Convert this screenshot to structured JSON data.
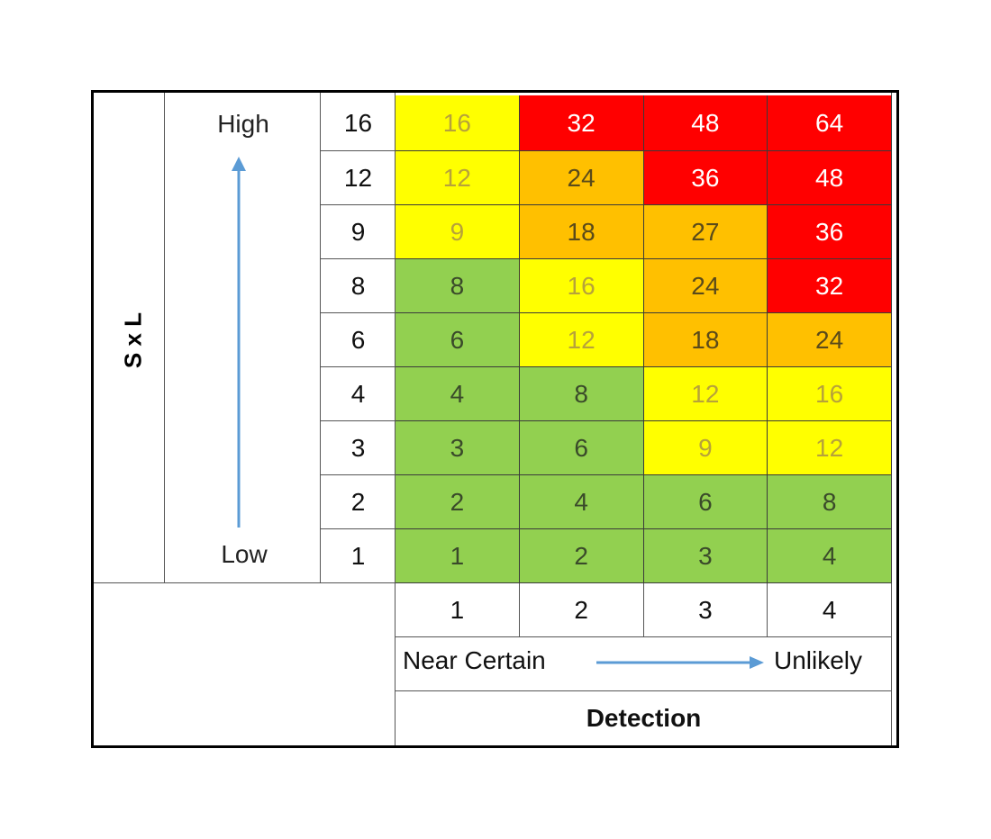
{
  "y_axis": {
    "title": "S x L",
    "high_label": "High",
    "low_label": "Low"
  },
  "row_labels": [
    "16",
    "12",
    "9",
    "8",
    "6",
    "4",
    "3",
    "2",
    "1"
  ],
  "col_labels": [
    "1",
    "2",
    "3",
    "4"
  ],
  "x_axis": {
    "left_label": "Near Certain",
    "right_label": "Unlikely",
    "title": "Detection"
  },
  "colors": {
    "green": "#92d050",
    "yellow": "#ffff00",
    "orange": "#ffc000",
    "red": "#ff0000",
    "arrow": "#5b9bd5"
  },
  "grid": [
    [
      {
        "v": "16",
        "c": "yellow"
      },
      {
        "v": "32",
        "c": "red"
      },
      {
        "v": "48",
        "c": "red"
      },
      {
        "v": "64",
        "c": "red"
      }
    ],
    [
      {
        "v": "12",
        "c": "yellow"
      },
      {
        "v": "24",
        "c": "orange"
      },
      {
        "v": "36",
        "c": "red"
      },
      {
        "v": "48",
        "c": "red"
      }
    ],
    [
      {
        "v": "9",
        "c": "yellow"
      },
      {
        "v": "18",
        "c": "orange"
      },
      {
        "v": "27",
        "c": "orange"
      },
      {
        "v": "36",
        "c": "red"
      }
    ],
    [
      {
        "v": "8",
        "c": "green"
      },
      {
        "v": "16",
        "c": "yellow"
      },
      {
        "v": "24",
        "c": "orange"
      },
      {
        "v": "32",
        "c": "red"
      }
    ],
    [
      {
        "v": "6",
        "c": "green"
      },
      {
        "v": "12",
        "c": "yellow"
      },
      {
        "v": "18",
        "c": "orange"
      },
      {
        "v": "24",
        "c": "orange"
      }
    ],
    [
      {
        "v": "4",
        "c": "green"
      },
      {
        "v": "8",
        "c": "green"
      },
      {
        "v": "12",
        "c": "yellow"
      },
      {
        "v": "16",
        "c": "yellow"
      }
    ],
    [
      {
        "v": "3",
        "c": "green"
      },
      {
        "v": "6",
        "c": "green"
      },
      {
        "v": "9",
        "c": "yellow"
      },
      {
        "v": "12",
        "c": "yellow"
      }
    ],
    [
      {
        "v": "2",
        "c": "green"
      },
      {
        "v": "4",
        "c": "green"
      },
      {
        "v": "6",
        "c": "green"
      },
      {
        "v": "8",
        "c": "green"
      }
    ],
    [
      {
        "v": "1",
        "c": "green"
      },
      {
        "v": "2",
        "c": "green"
      },
      {
        "v": "3",
        "c": "green"
      },
      {
        "v": "4",
        "c": "green"
      }
    ]
  ]
}
